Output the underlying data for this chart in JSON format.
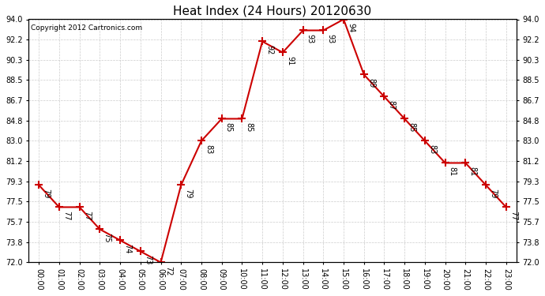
{
  "title": "Heat Index (24 Hours) 20120630",
  "copyright": "Copyright 2012 Cartronics.com",
  "x_labels": [
    "00:00",
    "01:00",
    "02:00",
    "03:00",
    "04:00",
    "05:00",
    "06:00",
    "07:00",
    "08:00",
    "09:00",
    "10:00",
    "11:00",
    "12:00",
    "13:00",
    "14:00",
    "15:00",
    "16:00",
    "17:00",
    "18:00",
    "19:00",
    "20:00",
    "21:00",
    "22:00",
    "23:00"
  ],
  "y_values": [
    79,
    77,
    77,
    75,
    74,
    73,
    72,
    79,
    83,
    85,
    85,
    92,
    91,
    93,
    93,
    94,
    89,
    87,
    85,
    83,
    81,
    81,
    79,
    77
  ],
  "y_ticks": [
    72.0,
    73.8,
    75.7,
    77.5,
    79.3,
    81.2,
    83.0,
    84.8,
    86.7,
    88.5,
    90.3,
    92.2,
    94.0
  ],
  "ylim": [
    72.0,
    94.0
  ],
  "line_color": "#cc0000",
  "marker": "+",
  "marker_size": 7,
  "marker_lw": 1.5,
  "grid_color": "#cccccc",
  "bg_color": "#ffffff",
  "title_fontsize": 11,
  "tick_fontsize": 7,
  "annot_fontsize": 7,
  "copyright_fontsize": 6.5
}
